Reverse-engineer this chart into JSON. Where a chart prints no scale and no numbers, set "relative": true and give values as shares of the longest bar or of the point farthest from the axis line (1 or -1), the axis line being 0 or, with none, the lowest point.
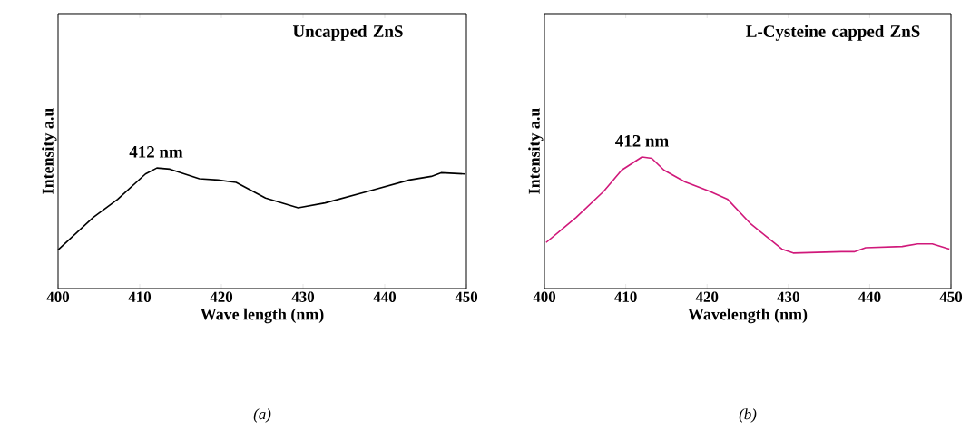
{
  "chart_data": [
    {
      "type": "line",
      "title": "Uncapped ZnS",
      "xlabel": "Wave length (nm)",
      "ylabel": "Intensity a.u",
      "relative": true,
      "xlim": [
        400,
        450
      ],
      "xticks": [
        400,
        410,
        420,
        430,
        440,
        450
      ],
      "annotations": [
        {
          "text": "412 nm",
          "x": 412,
          "y": 1.0
        },
        "(a)"
      ],
      "series": [
        {
          "color": "#000000",
          "x": [
            400,
            404.3,
            407.3,
            410.7,
            412.1,
            413.7,
            417.3,
            419.6,
            421.8,
            425.4,
            429.4,
            432.7,
            438.2,
            443.0,
            445.7,
            446.9,
            449.8
          ],
          "values": [
            0.32,
            0.59,
            0.74,
            0.95,
            1.0,
            0.99,
            0.91,
            0.9,
            0.88,
            0.75,
            0.67,
            0.71,
            0.81,
            0.9,
            0.93,
            0.96,
            0.95
          ]
        }
      ]
    },
    {
      "type": "line",
      "title": "L-Cysteine capped ZnS",
      "xlabel": "Wavelength (nm)",
      "ylabel": "Intensity a.u",
      "relative": true,
      "xlim": [
        400,
        450
      ],
      "xticks": [
        400,
        410,
        420,
        430,
        440,
        450
      ],
      "annotations": [
        {
          "text": "412 nm",
          "x": 412,
          "y": 1.0
        },
        "(b)"
      ],
      "series": [
        {
          "color": "#d0187a",
          "x": [
            400.2,
            403.9,
            407.3,
            409.5,
            412.0,
            413.2,
            414.7,
            417.3,
            420.3,
            422.5,
            425.4,
            429.2,
            430.6,
            436.5,
            438.1,
            439.5,
            444.0,
            445.9,
            447.7,
            449.8
          ],
          "values": [
            0.35,
            0.54,
            0.74,
            0.9,
            1.0,
            0.99,
            0.9,
            0.81,
            0.74,
            0.68,
            0.49,
            0.3,
            0.27,
            0.28,
            0.28,
            0.31,
            0.32,
            0.34,
            0.34,
            0.3
          ]
        }
      ]
    }
  ]
}
